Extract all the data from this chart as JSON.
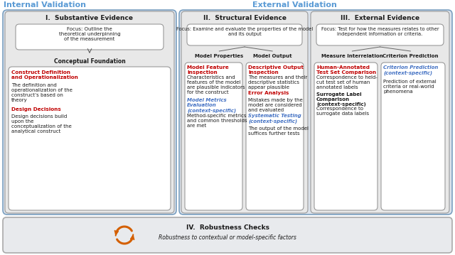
{
  "title_internal": "Internal Validation",
  "title_external": "External Validation",
  "white": "#ffffff",
  "light_gray": "#e8eaed",
  "panel_gray": "#ebebeb",
  "red": "#c00000",
  "blue": "#4472c4",
  "dark": "#1a1a1a",
  "border": "#999999",
  "arrow_color": "#d45f00",
  "section_I_title": "I.  Substantive Evidence",
  "section_II_title": "II.  Structural Evidence",
  "section_III_title": "III.  External Evidence",
  "focus_I": "Focus: Outline the\ntheoretical underpinning\nof the measurement",
  "focus_II": "Focus: Examine and evaluate the properties of the model\nand its output",
  "focus_III": "Focus: Test for how the measures relates to other\nindependent information or criteria.",
  "conceptual_label": "Conceptual Foundation",
  "model_props_label": "Model Properties",
  "model_output_label": "Model Output",
  "measure_interrel_label": "Measure Interrelation",
  "criterion_pred_label": "Criterion Prediction",
  "box1_title": "Construct Definition\nand Operationalization",
  "box1_body": "The definition and\noperationalization of the\nconstruct’s based on\ntheory",
  "box2_title": "Design Decisions",
  "box2_body": "Design decisions build\nupon the\nconceptualization of the\nanalytical construct",
  "box3_title": "Model Feature\nInspection",
  "box3_body": "Characteristics and\nfeatures of the model\nare plausible indicators\nfor the construct",
  "box4_title": "Model Metrics\nEvaluation\n(context-specific)",
  "box4_body": "Method-specific metrics\nand common thresholds\nare met",
  "box5_title": "Descriptive Output\nInspection",
  "box5_body": "The measures and their\ndescriptive statistics\nappear plausible",
  "box6_title": "Error Analysis",
  "box6_body": "Mistakes made by the\nmodel are considered\nand evaluated",
  "box7_title": "Systematic Testing\n(context-specific)",
  "box7_body": "The output of the model\nsuffices further tests",
  "box8_title": "Human-Annotated\nTest Set Comparison",
  "box8_body": "Correspondence to held-\ncut test set of human\nannotated labels",
  "box9_title": "Surrogate Label\nComparison\n(context-specific)",
  "box9_body": "Correspondence to\nsurrogate data labels",
  "box10_title": "Criterion Prediction\n(context-specific)",
  "box10_body": "Prediction of external\ncriteria or real-world\nphenomena",
  "robustness_label": "IV.  Robustness Checks",
  "robustness_body": "Robustness to contextual or model-specific factors"
}
